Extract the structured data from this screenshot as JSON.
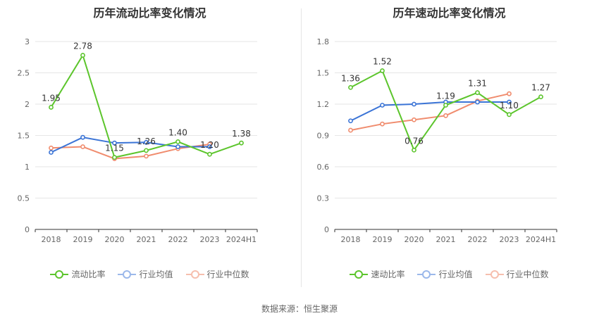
{
  "source": "数据来源：恒生聚源",
  "colors": {
    "main_green": "#5cc52c",
    "industry_avg_blue": "#3b74d6",
    "industry_median_orange": "#f08c6e",
    "legend_avg_faded": "#9bb8ea",
    "legend_median_faded": "#f6bfae",
    "grid": "#e6e6e6",
    "axis": "#666666",
    "label": "#333333"
  },
  "chart_data": [
    {
      "type": "line",
      "title": "历年流动比率变化情况",
      "categories": [
        "2018",
        "2019",
        "2020",
        "2021",
        "2022",
        "2023",
        "2024H1"
      ],
      "ylim": [
        0,
        3
      ],
      "yticks": [
        0,
        0.5,
        1,
        1.5,
        2,
        2.5,
        3
      ],
      "ytick_labels": [
        "0",
        "0.5",
        "1",
        "1.5",
        "2",
        "2.5",
        "3"
      ],
      "grid": true,
      "legend_position": "bottom-center",
      "series": [
        {
          "name": "流动比率",
          "color_key": "main_green",
          "values": [
            1.95,
            2.78,
            1.15,
            1.26,
            1.4,
            1.2,
            1.38
          ],
          "labels": [
            "1.95",
            "2.78",
            "1.15",
            "1.26",
            "1.40",
            "1.20",
            "1.38"
          ]
        },
        {
          "name": "行业均值",
          "color_key": "industry_avg_blue",
          "values": [
            1.23,
            1.47,
            1.38,
            1.39,
            1.32,
            1.32,
            null
          ]
        },
        {
          "name": "行业中位数",
          "color_key": "industry_median_orange",
          "values": [
            1.3,
            1.32,
            1.13,
            1.17,
            1.29,
            1.36,
            null
          ]
        }
      ]
    },
    {
      "type": "line",
      "title": "历年速动比率变化情况",
      "categories": [
        "2018",
        "2019",
        "2020",
        "2021",
        "2022",
        "2023",
        "2024H1"
      ],
      "ylim": [
        0,
        1.8
      ],
      "yticks": [
        0,
        0.3,
        0.6,
        0.9,
        1.2,
        1.5,
        1.8
      ],
      "ytick_labels": [
        "0",
        "0.3",
        "0.6",
        "0.9",
        "1.2",
        "1.5",
        "1.8"
      ],
      "grid": true,
      "legend_position": "bottom-center",
      "series": [
        {
          "name": "速动比率",
          "color_key": "main_green",
          "values": [
            1.36,
            1.52,
            0.76,
            1.19,
            1.31,
            1.1,
            1.27
          ],
          "labels": [
            "1.36",
            "1.52",
            "0.76",
            "1.19",
            "1.31",
            "1.10",
            "1.27"
          ]
        },
        {
          "name": "行业均值",
          "color_key": "industry_avg_blue",
          "values": [
            1.04,
            1.19,
            1.2,
            1.22,
            1.22,
            1.22,
            null
          ]
        },
        {
          "name": "行业中位数",
          "color_key": "industry_median_orange",
          "values": [
            0.95,
            1.01,
            1.05,
            1.09,
            1.23,
            1.3,
            null
          ]
        }
      ]
    }
  ]
}
